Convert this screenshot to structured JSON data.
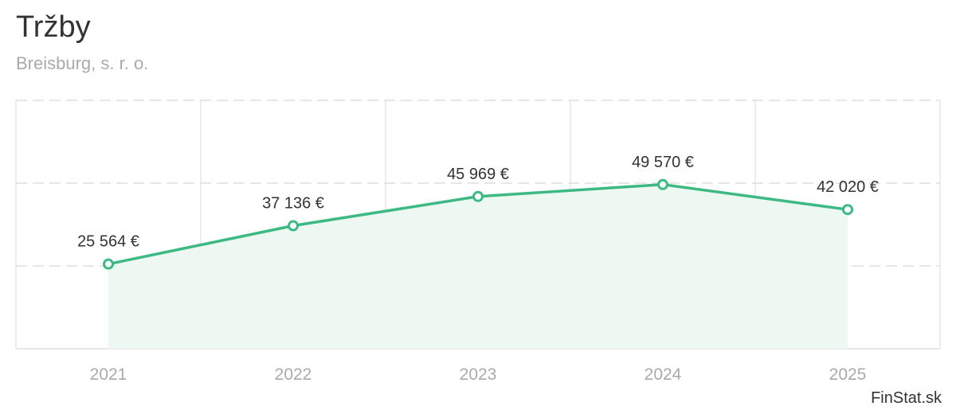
{
  "header": {
    "title": "Tržby",
    "subtitle": "Breisburg, s. r. o."
  },
  "credit": "FinStat.sk",
  "colors": {
    "line": "#3dba84",
    "area": "#eef8f3",
    "grid": "#dddddd",
    "point_fill": "#ffffff",
    "title": "#333333",
    "subtitle": "#aaaaaa",
    "tick_label": "#aaaaaa"
  },
  "chart_data": {
    "type": "area",
    "title": "Tržby",
    "subtitle": "Breisburg, s. r. o.",
    "categories": [
      "2021",
      "2022",
      "2023",
      "2024",
      "2025"
    ],
    "series": [
      {
        "values": [
          25564,
          37136,
          45969,
          49570,
          42020
        ],
        "data_labels": [
          "25 564 €",
          "37 136 €",
          "45 969 €",
          "49 570 €",
          "42 020 €"
        ]
      }
    ],
    "xlabel": "",
    "ylabel": "",
    "ylim": [
      0,
      75000
    ],
    "y_gridlines": [
      25000,
      50000,
      75000
    ],
    "y_axis_labels_visible": false,
    "grid": true,
    "legend": "none"
  }
}
